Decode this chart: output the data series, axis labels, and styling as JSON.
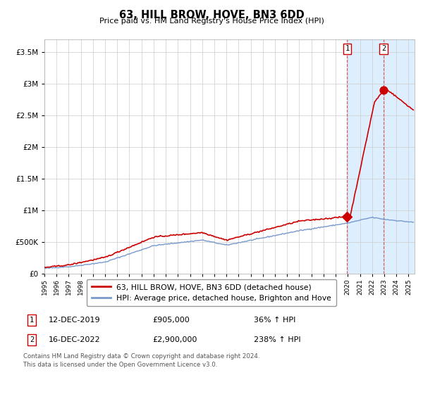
{
  "title": "63, HILL BROW, HOVE, BN3 6DD",
  "subtitle": "Price paid vs. HM Land Registry's House Price Index (HPI)",
  "legend_line1": "63, HILL BROW, HOVE, BN3 6DD (detached house)",
  "legend_line2": "HPI: Average price, detached house, Brighton and Hove",
  "annotation1_label": "1",
  "annotation1_date": "12-DEC-2019",
  "annotation1_price": "£905,000",
  "annotation1_hpi": "36% ↑ HPI",
  "annotation1_year": 2019.95,
  "annotation1_value": 905000,
  "annotation2_label": "2",
  "annotation2_date": "16-DEC-2022",
  "annotation2_price": "£2,900,000",
  "annotation2_hpi": "238% ↑ HPI",
  "annotation2_year": 2022.95,
  "annotation2_value": 2900000,
  "ylim": [
    0,
    3700000
  ],
  "xlim_start": 1995,
  "xlim_end": 2025.5,
  "shaded_start": 2019.95,
  "shaded_end": 2025.5,
  "red_color": "#cc0000",
  "blue_color": "#7799cc",
  "shade_color": "#ddeeff",
  "grid_color": "#cccccc",
  "bg_color": "#f5f5f5",
  "footnote": "Contains HM Land Registry data © Crown copyright and database right 2024.\nThis data is licensed under the Open Government Licence v3.0."
}
